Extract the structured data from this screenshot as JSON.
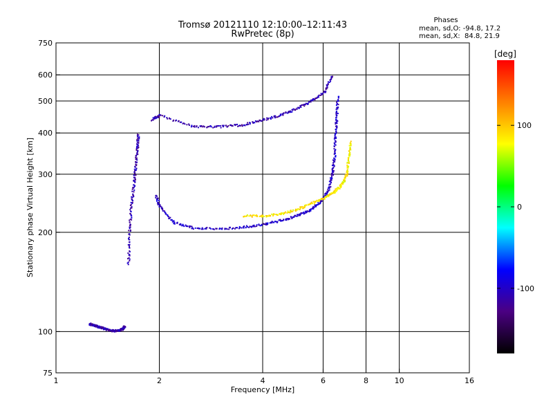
{
  "chart_data": {
    "type": "scatter",
    "title": "Tromsø 20121110 12:10:00–12:11:43",
    "subtitle": "RwPretec (8p)",
    "xlabel": "Frequency [MHz]",
    "ylabel": "Stationary phase Virtual Height [km]",
    "xscale": "log",
    "yscale": "log",
    "xlim": [
      1,
      16
    ],
    "ylim": [
      75,
      750
    ],
    "xticks": [
      1,
      2,
      4,
      6,
      8,
      10,
      16
    ],
    "yticks": [
      75,
      100,
      200,
      300,
      400,
      500,
      600,
      750
    ],
    "vgrid": [
      2,
      4,
      6,
      8,
      10
    ],
    "hgrid": [
      100,
      200,
      300,
      400,
      500,
      600
    ],
    "grid": true,
    "stats": {
      "title": "Phases",
      "line_o": "mean, sd,O: -94.8, 17.2",
      "line_x": "mean, sd,X:  84.8, 21.9"
    },
    "colorbar": {
      "label": "[deg]",
      "range": [
        -180,
        180
      ],
      "ticks": [
        -100,
        0,
        100
      ],
      "colors": [
        "#000000",
        "#4b0082",
        "#0000ff",
        "#00ffff",
        "#00ff00",
        "#ffff00",
        "#ff8000",
        "#ff0000"
      ],
      "placement": "right"
    },
    "traces": [
      {
        "description": "E-layer echo",
        "phase": -110,
        "points": [
          [
            1.25,
            106
          ],
          [
            1.28,
            105
          ],
          [
            1.32,
            104
          ],
          [
            1.36,
            103
          ],
          [
            1.4,
            102
          ],
          [
            1.45,
            101
          ],
          [
            1.5,
            101
          ],
          [
            1.55,
            102
          ],
          [
            1.58,
            104
          ]
        ]
      },
      {
        "description": "F1 cusp lower-left",
        "phase": -110,
        "points": [
          [
            1.62,
            160
          ],
          [
            1.63,
            200
          ],
          [
            1.65,
            240
          ],
          [
            1.68,
            280
          ],
          [
            1.7,
            320
          ],
          [
            1.72,
            360
          ],
          [
            1.73,
            400
          ]
        ]
      },
      {
        "description": "Upper branch (O)",
        "phase": -110,
        "points": [
          [
            1.9,
            440
          ],
          [
            2.0,
            455
          ],
          [
            2.5,
            420
          ],
          [
            3.0,
            420
          ],
          [
            3.5,
            425
          ],
          [
            4.0,
            440
          ],
          [
            4.5,
            455
          ],
          [
            5.0,
            475
          ],
          [
            5.5,
            500
          ],
          [
            6.0,
            530
          ],
          [
            6.35,
            600
          ]
        ]
      },
      {
        "description": "Lower branch (O)",
        "phase": -100,
        "points": [
          [
            1.95,
            260
          ],
          [
            2.0,
            240
          ],
          [
            2.2,
            215
          ],
          [
            2.5,
            207
          ],
          [
            3.0,
            206
          ],
          [
            3.5,
            208
          ],
          [
            4.0,
            212
          ],
          [
            4.5,
            218
          ],
          [
            5.0,
            225
          ],
          [
            5.5,
            235
          ],
          [
            5.9,
            250
          ],
          [
            6.2,
            270
          ],
          [
            6.35,
            300
          ],
          [
            6.45,
            340
          ],
          [
            6.5,
            400
          ],
          [
            6.55,
            450
          ],
          [
            6.6,
            520
          ]
        ]
      },
      {
        "description": "X-mode branch",
        "phase": 85,
        "points": [
          [
            3.5,
            225
          ],
          [
            4.0,
            225
          ],
          [
            4.5,
            228
          ],
          [
            5.0,
            235
          ],
          [
            5.5,
            245
          ],
          [
            6.0,
            255
          ],
          [
            6.4,
            265
          ],
          [
            6.8,
            280
          ],
          [
            7.0,
            300
          ],
          [
            7.1,
            340
          ],
          [
            7.2,
            380
          ]
        ]
      }
    ]
  }
}
